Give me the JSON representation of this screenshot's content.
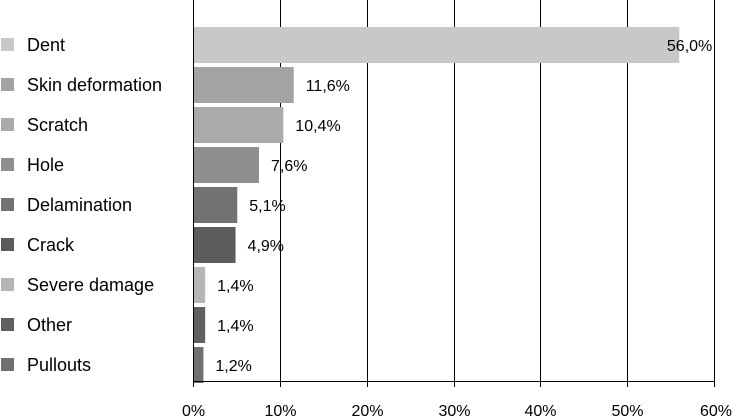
{
  "chart_data": {
    "type": "bar",
    "orientation": "horizontal",
    "categories": [
      "Dent",
      "Skin deformation",
      "Scratch",
      "Hole",
      "Delamination",
      "Crack",
      "Severe damage",
      "Other",
      "Pullouts"
    ],
    "values": [
      56.0,
      11.6,
      10.4,
      7.6,
      5.1,
      4.9,
      1.4,
      1.4,
      1.2
    ],
    "value_labels": [
      "56,0%",
      "11,6%",
      "10,4%",
      "7,6%",
      "5,1%",
      "4,9%",
      "1,4%",
      "1,4%",
      "1,2%"
    ],
    "colors": [
      "#c8c8c8",
      "#a3a3a3",
      "#aaaaaa",
      "#8f8f8f",
      "#727272",
      "#5c5c5c",
      "#b5b5b5",
      "#606060",
      "#707070"
    ],
    "xlim": [
      0,
      60
    ],
    "x_ticks": [
      0,
      10,
      20,
      30,
      40,
      50,
      60
    ],
    "x_tick_labels": [
      "0%",
      "10%",
      "20%",
      "30%",
      "40%",
      "50%",
      "60%"
    ],
    "grid": true,
    "legend": "left",
    "title": "",
    "xlabel": "",
    "ylabel": ""
  }
}
